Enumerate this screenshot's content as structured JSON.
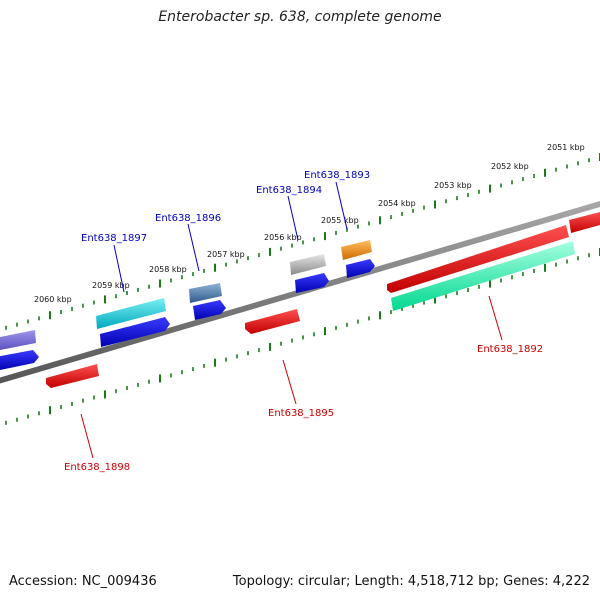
{
  "title": "Enterobacter sp. 638, complete genome",
  "footer": {
    "accession": "Accession: NC_009436",
    "info": "Topology: circular; Length: 4,518,712 bp; Genes: 4,222"
  },
  "scale_labels": [
    "2051 kbp",
    "2052 kbp",
    "2053 kbp",
    "2054 kbp",
    "2055 kbp",
    "2056 kbp",
    "2057 kbp",
    "2058 kbp",
    "2059 kbp",
    "2060 kbp"
  ],
  "genes": [
    {
      "id": "Ent638_1892",
      "strand": "reverse",
      "color": "#e60000"
    },
    {
      "id": "Ent638_1893",
      "strand": "forward",
      "color": "#0000ee"
    },
    {
      "id": "Ent638_1894",
      "strand": "forward",
      "color": "#0000ee"
    },
    {
      "id": "Ent638_1895",
      "strand": "reverse",
      "color": "#e60000"
    },
    {
      "id": "Ent638_1896",
      "strand": "forward",
      "color": "#0000ee"
    },
    {
      "id": "Ent638_1897",
      "strand": "forward",
      "color": "#0000ee"
    },
    {
      "id": "Ent638_1898",
      "strand": "reverse",
      "color": "#e60000"
    }
  ],
  "colors": {
    "forward": "#0000ee",
    "reverse": "#e60000",
    "backbone": "#7a7a7a",
    "scale": "#1a7a1a"
  }
}
